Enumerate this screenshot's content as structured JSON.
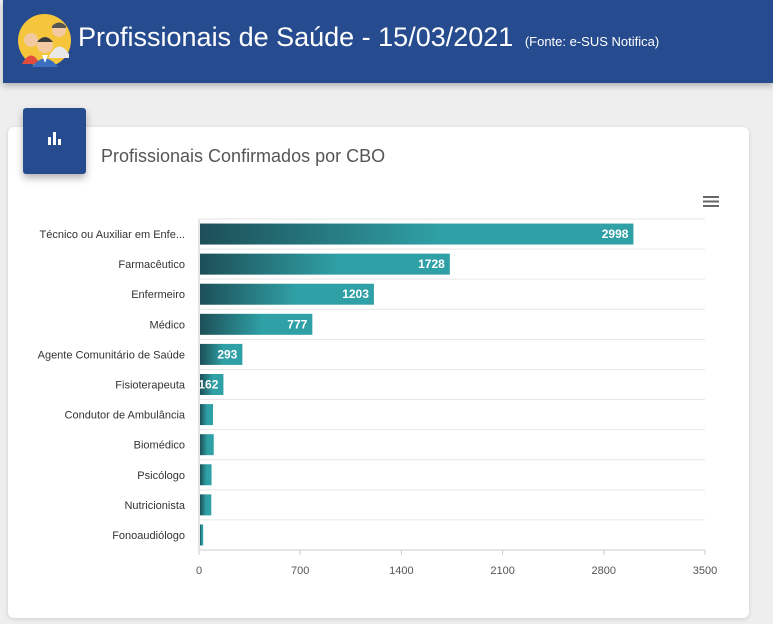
{
  "header": {
    "title": "Profissionais de Saúde - 15/03/2021",
    "source": "(Fonte: e-SUS Notifica)",
    "avatar_icon": "health-professionals-icon"
  },
  "card": {
    "title": "Profissionais Confirmados por CBO",
    "icon": "bar-chart-icon",
    "menu_icon": "hamburger-menu-icon"
  },
  "colors": {
    "header_bg": "#274b8f",
    "bar_dark": "#1d4f57",
    "bar_light": "#2fa0a5"
  },
  "chart_data": {
    "type": "bar",
    "orientation": "horizontal",
    "title": "",
    "xlabel": "",
    "ylabel": "",
    "categories": [
      "Técnico ou Auxiliar em Enfe...",
      "Farmacêutico",
      "Enfermeiro",
      "Médico",
      "Agente Comunitário de Saúde",
      "Fisioterapeuta",
      "Condutor de Ambulância",
      "Biomédico",
      "Psicólogo",
      "Nutricionista",
      "Fonoaudiólogo"
    ],
    "values": [
      2998,
      1728,
      1203,
      777,
      293,
      162,
      90,
      95,
      80,
      78,
      22
    ],
    "data_labels": [
      "2998",
      "1728",
      "1203",
      "777",
      "293",
      "162",
      "",
      "",
      "",
      "",
      ""
    ],
    "xlim": [
      0,
      3500
    ],
    "ticks": [
      0,
      700,
      1400,
      2100,
      2800,
      3500
    ],
    "tick_labels": [
      "0",
      "700",
      "1400",
      "2100",
      "2800",
      "3500"
    ],
    "grid": true,
    "legend": "none"
  }
}
